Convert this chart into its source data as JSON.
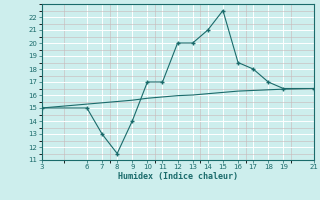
{
  "x": [
    3,
    6,
    7,
    8,
    9,
    10,
    11,
    12,
    13,
    14,
    15,
    16,
    17,
    18,
    19,
    21
  ],
  "y_main": [
    15,
    15,
    13,
    11.5,
    14,
    17,
    17,
    20,
    20,
    21,
    22.5,
    18.5,
    18,
    17,
    16.5,
    16.5
  ],
  "y_smooth": [
    15,
    15.3,
    15.4,
    15.5,
    15.6,
    15.75,
    15.85,
    15.95,
    16.0,
    16.1,
    16.2,
    16.3,
    16.35,
    16.4,
    16.45,
    16.5
  ],
  "xlabel": "Humidex (Indice chaleur)",
  "xlim": [
    3,
    21
  ],
  "ylim": [
    11,
    23
  ],
  "xticks": [
    3,
    6,
    7,
    8,
    9,
    10,
    11,
    12,
    13,
    14,
    15,
    16,
    17,
    18,
    19,
    21
  ],
  "yticks": [
    11,
    12,
    13,
    14,
    15,
    16,
    17,
    18,
    19,
    20,
    21,
    22
  ],
  "line_color": "#1a6b6b",
  "bg_color": "#cdeeed",
  "grid_major_color": "#ffffff",
  "grid_minor_color": "#b8dedd"
}
